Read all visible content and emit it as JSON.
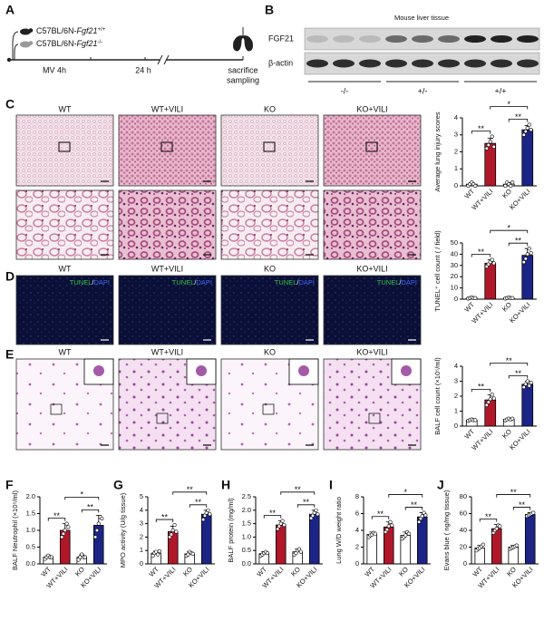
{
  "panel_labels": [
    "A",
    "B",
    "C",
    "D",
    "E"
  ],
  "timeline": {
    "mice": [
      {
        "prefix": "C57BL/6N-",
        "gene": "Fgf21",
        "genotype": "+/+"
      },
      {
        "prefix": "C57BL/6N-",
        "gene": "Fgf21",
        "genotype": "-/-"
      }
    ],
    "steps": [
      "MV 4h",
      "24 h"
    ],
    "end": [
      "sacrifice",
      "sampling"
    ]
  },
  "blot": {
    "title": "Mouse liver tissue",
    "rows": [
      "FGF21",
      "β-actin"
    ],
    "groups": [
      "-/-",
      "+/-",
      "+/+"
    ]
  },
  "histology": {
    "groups": [
      "WT",
      "WT+VILI",
      "KO",
      "KO+VILI"
    ],
    "stain_label": [
      "TUNEL",
      "/",
      "DAPI"
    ]
  },
  "chart_data": [
    {
      "type": "bar",
      "ylabel": "Average lung injury scores",
      "categories": [
        "WT",
        "WT+VILI",
        "KO",
        "KO+VILI"
      ],
      "values": [
        0.1,
        2.5,
        0.1,
        3.3
      ],
      "errors": [
        0.1,
        0.3,
        0.1,
        0.25
      ],
      "points": [
        [
          0,
          0.1,
          0.2,
          0.1,
          0
        ],
        [
          2.2,
          2.4,
          2.6,
          2.9,
          2.3
        ],
        [
          0,
          0.2,
          0.1,
          0,
          0.2
        ],
        [
          3.0,
          3.2,
          3.4,
          3.6,
          3.3
        ]
      ],
      "colors": [
        "#ffffff",
        "#b0182a",
        "#ffffff",
        "#1c2585"
      ],
      "ylim": [
        0,
        4
      ],
      "yticks": [
        0,
        1,
        2,
        3,
        4
      ],
      "significance": [
        {
          "from": "WT",
          "to": "WT+VILI",
          "label": "**"
        },
        {
          "from": "KO",
          "to": "KO+VILI",
          "label": "**"
        },
        {
          "from": "WT+VILI",
          "to": "KO+VILI",
          "label": "*"
        }
      ]
    },
    {
      "type": "bar",
      "ylabel": "TUNEL⁺ cell count ( / field)",
      "categories": [
        "WT",
        "WT+VILI",
        "KO",
        "KO+VILI"
      ],
      "values": [
        1,
        32,
        1,
        39
      ],
      "errors": [
        0.5,
        3,
        0.5,
        6
      ],
      "points": [
        [
          0.5,
          1,
          1.5,
          1,
          1
        ],
        [
          29,
          31,
          33,
          35,
          32
        ],
        [
          0.5,
          1,
          1.5,
          1,
          1
        ],
        [
          33,
          36,
          40,
          45,
          41
        ]
      ],
      "colors": [
        "#ffffff",
        "#b0182a",
        "#ffffff",
        "#1c2585"
      ],
      "ylim": [
        0,
        50
      ],
      "yticks": [
        0,
        10,
        20,
        30,
        40,
        50
      ],
      "significance": [
        {
          "from": "WT",
          "to": "WT+VILI",
          "label": "**"
        },
        {
          "from": "KO",
          "to": "KO+VILI",
          "label": "**"
        },
        {
          "from": "WT+VILI",
          "to": "KO+VILI",
          "label": "*"
        }
      ]
    },
    {
      "type": "bar",
      "ylabel": "BALF cell count (×10⁵/ml)",
      "categories": [
        "WT",
        "WT+VILI",
        "KO",
        "KO+VILI"
      ],
      "values": [
        0.4,
        1.75,
        0.45,
        2.8
      ],
      "errors": [
        0.05,
        0.35,
        0.08,
        0.2
      ],
      "points": [
        [
          0.35,
          0.4,
          0.45,
          0.4,
          0.4
        ],
        [
          1.4,
          1.6,
          1.8,
          2.1,
          1.85
        ],
        [
          0.38,
          0.45,
          0.5,
          0.42,
          0.5
        ],
        [
          2.6,
          2.8,
          3.0,
          2.7,
          2.9
        ]
      ],
      "colors": [
        "#ffffff",
        "#b0182a",
        "#ffffff",
        "#1c2585"
      ],
      "ylim": [
        0,
        4
      ],
      "yticks": [
        0,
        1,
        2,
        3,
        4
      ],
      "significance": [
        {
          "from": "WT",
          "to": "WT+VILI",
          "label": "**"
        },
        {
          "from": "KO",
          "to": "KO+VILI",
          "label": "**"
        },
        {
          "from": "WT+VILI",
          "to": "KO+VILI",
          "label": "**"
        }
      ]
    },
    {
      "type": "bar",
      "panel": "F",
      "ylabel": "BALF Neutrophil (×10⁵/ml)",
      "categories": [
        "WT",
        "WT+VILI",
        "KO",
        "KO+VILI"
      ],
      "values": [
        0.2,
        1.0,
        0.2,
        1.15
      ],
      "errors": [
        0.05,
        0.2,
        0.07,
        0.3
      ],
      "points": [
        [
          0.15,
          0.2,
          0.25,
          0.2,
          0.2
        ],
        [
          0.8,
          0.9,
          1.0,
          1.2,
          1.1
        ],
        [
          0.12,
          0.2,
          0.28,
          0.2,
          0.2
        ],
        [
          0.8,
          1.0,
          1.2,
          1.4,
          1.35
        ]
      ],
      "colors": [
        "#ffffff",
        "#b0182a",
        "#ffffff",
        "#1c2585"
      ],
      "ylim": [
        0,
        2
      ],
      "yticks": [
        {
          "value": 0,
          "label": "0.0"
        },
        {
          "value": 0.5,
          "label": "0.5"
        },
        {
          "value": 1,
          "label": "1.0"
        },
        {
          "value": 1.5,
          "label": "1.5"
        },
        {
          "value": 2,
          "label": "2.0"
        }
      ],
      "significance": [
        {
          "from": "WT",
          "to": "WT+VILI",
          "label": "**"
        },
        {
          "from": "KO",
          "to": "KO+VILI",
          "label": "**"
        },
        {
          "from": "WT+VILI",
          "to": "KO+VILI",
          "label": "*"
        }
      ]
    },
    {
      "type": "bar",
      "panel": "G",
      "ylabel": "MPO activity (U/g tissue)",
      "categories": [
        "WT",
        "WT+VILI",
        "KO",
        "KO+VILI"
      ],
      "values": [
        0.8,
        2.4,
        0.75,
        3.7
      ],
      "errors": [
        0.15,
        0.4,
        0.15,
        0.3
      ],
      "points": [
        [
          0.6,
          0.8,
          0.9,
          0.7,
          0.95
        ],
        [
          2.0,
          2.2,
          2.5,
          2.9,
          2.4
        ],
        [
          0.6,
          0.7,
          0.9,
          0.8,
          0.75
        ],
        [
          3.3,
          3.6,
          3.8,
          4.0,
          3.7
        ]
      ],
      "colors": [
        "#ffffff",
        "#b0182a",
        "#ffffff",
        "#1c2585"
      ],
      "ylim": [
        0,
        5
      ],
      "yticks": [
        0,
        1,
        2,
        3,
        4,
        5
      ],
      "significance": [
        {
          "from": "WT",
          "to": "WT+VILI",
          "label": "**"
        },
        {
          "from": "KO",
          "to": "KO+VILI",
          "label": "**"
        },
        {
          "from": "WT+VILI",
          "to": "KO+VILI",
          "label": "**"
        }
      ]
    },
    {
      "type": "bar",
      "panel": "H",
      "ylabel": "BALF protein (mg/ml)",
      "categories": [
        "WT",
        "WT+VILI",
        "KO",
        "KO+VILI"
      ],
      "values": [
        0.38,
        1.45,
        0.45,
        1.85
      ],
      "errors": [
        0.08,
        0.15,
        0.1,
        0.15
      ],
      "points": [
        [
          0.3,
          0.35,
          0.4,
          0.45,
          0.4
        ],
        [
          1.3,
          1.4,
          1.5,
          1.6,
          1.45
        ],
        [
          0.35,
          0.4,
          0.5,
          0.55,
          0.45
        ],
        [
          1.7,
          1.8,
          1.9,
          2.0,
          1.85
        ]
      ],
      "colors": [
        "#ffffff",
        "#b0182a",
        "#ffffff",
        "#1c2585"
      ],
      "ylim": [
        0,
        2.5
      ],
      "yticks": [
        {
          "value": 0,
          "label": "0.0"
        },
        {
          "value": 0.5,
          "label": "0.5"
        },
        {
          "value": 1,
          "label": "1.0"
        },
        {
          "value": 1.5,
          "label": "1.5"
        },
        {
          "value": 2,
          "label": "2.0"
        },
        {
          "value": 2.5,
          "label": "2.5"
        }
      ],
      "significance": [
        {
          "from": "WT",
          "to": "WT+VILI",
          "label": "**"
        },
        {
          "from": "KO",
          "to": "KO+VILI",
          "label": "**"
        },
        {
          "from": "WT+VILI",
          "to": "KO+VILI",
          "label": "**"
        }
      ]
    },
    {
      "type": "bar",
      "panel": "I",
      "ylabel": "Lung W/D weight ratio",
      "categories": [
        "WT",
        "WT+VILI",
        "KO",
        "KO+VILI"
      ],
      "values": [
        3.5,
        4.4,
        3.4,
        5.6
      ],
      "errors": [
        0.3,
        0.6,
        0.4,
        0.5
      ],
      "points": [
        [
          3.2,
          3.4,
          3.5,
          3.7,
          3.6
        ],
        [
          3.8,
          4.1,
          4.5,
          5.0,
          4.6
        ],
        [
          3.0,
          3.2,
          3.4,
          3.8,
          3.6
        ],
        [
          5.0,
          5.4,
          5.7,
          6.1,
          5.8
        ]
      ],
      "colors": [
        "#ffffff",
        "#b0182a",
        "#ffffff",
        "#1c2585"
      ],
      "ylim": [
        0,
        8
      ],
      "yticks": [
        0,
        2,
        4,
        6,
        8
      ],
      "significance": [
        {
          "from": "WT",
          "to": "WT+VILI",
          "label": "**"
        },
        {
          "from": "KO",
          "to": "KO+VILI",
          "label": "**"
        },
        {
          "from": "WT+VILI",
          "to": "KO+VILI",
          "label": "*"
        }
      ]
    },
    {
      "type": "bar",
      "panel": "J",
      "ylabel": "Evans blue ( ng/mg tissue)",
      "categories": [
        "WT",
        "WT+VILI",
        "KO",
        "KO+VILI"
      ],
      "values": [
        19,
        42,
        20,
        59
      ],
      "errors": [
        3,
        5,
        2,
        2
      ],
      "points": [
        [
          16,
          18,
          19,
          21,
          23
        ],
        [
          37,
          40,
          42,
          46,
          45
        ],
        [
          18,
          19,
          20,
          21,
          22
        ],
        [
          57,
          58,
          59,
          60,
          61
        ]
      ],
      "colors": [
        "#ffffff",
        "#b0182a",
        "#ffffff",
        "#1c2585"
      ],
      "ylim": [
        0,
        80
      ],
      "yticks": [
        0,
        20,
        40,
        60,
        80
      ],
      "significance": [
        {
          "from": "WT",
          "to": "WT+VILI",
          "label": "**"
        },
        {
          "from": "KO",
          "to": "KO+VILI",
          "label": "**"
        },
        {
          "from": "WT+VILI",
          "to": "KO+VILI",
          "label": "**"
        }
      ]
    }
  ]
}
